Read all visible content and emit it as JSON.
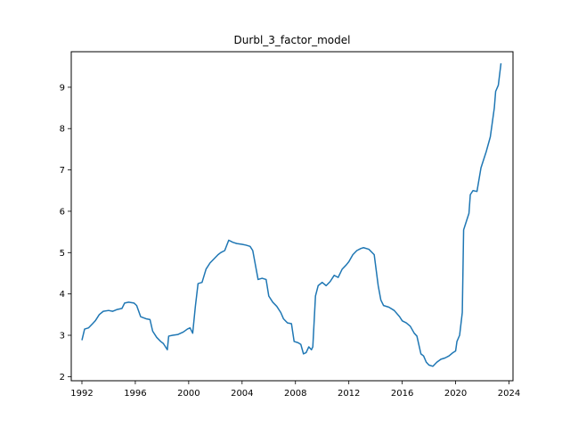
{
  "chart_data": {
    "type": "line",
    "title": "Durbl_3_factor_model",
    "xlabel": "",
    "ylabel": "",
    "xlim": [
      1991.2,
      2024.3
    ],
    "ylim": [
      1.9,
      9.86
    ],
    "xticks": [
      1992,
      1996,
      2000,
      2004,
      2008,
      2012,
      2016,
      2020,
      2024
    ],
    "yticks": [
      2,
      3,
      4,
      5,
      6,
      7,
      8,
      9
    ],
    "grid": false,
    "legend": "none",
    "line_color": "#1f77b4",
    "series": [
      {
        "x": [
          1992.0,
          1992.2,
          1992.5,
          1992.8,
          1993.0,
          1993.3,
          1993.6,
          1994.0,
          1994.3,
          1994.6,
          1995.0,
          1995.2,
          1995.5,
          1995.9,
          1996.1,
          1996.4,
          1996.8,
          1997.1,
          1997.3,
          1997.6,
          1997.9,
          1998.1,
          1998.4,
          1998.5,
          1998.8,
          1999.2,
          1999.6,
          1999.9,
          2000.1,
          2000.3,
          2000.5,
          2000.7,
          2001.0,
          2001.3,
          2001.6,
          2001.9,
          2002.2,
          2002.4,
          2002.7,
          2003.0,
          2003.3,
          2003.6,
          2004.0,
          2004.3,
          2004.6,
          2004.8,
          2005.0,
          2005.2,
          2005.5,
          2005.8,
          2006.0,
          2006.3,
          2006.6,
          2006.9,
          2007.1,
          2007.4,
          2007.7,
          2007.9,
          2008.2,
          2008.4,
          2008.6,
          2008.8,
          2009.0,
          2009.2,
          2009.3,
          2009.5,
          2009.7,
          2010.0,
          2010.3,
          2010.6,
          2010.9,
          2011.2,
          2011.5,
          2011.8,
          2012.0,
          2012.3,
          2012.6,
          2012.9,
          2013.1,
          2013.5,
          2013.9,
          2014.2,
          2014.4,
          2014.6,
          2015.0,
          2015.4,
          2015.8,
          2016.0,
          2016.3,
          2016.6,
          2016.9,
          2017.1,
          2017.4,
          2017.6,
          2017.8,
          2018.0,
          2018.3,
          2018.6,
          2018.9,
          2019.2,
          2019.5,
          2019.8,
          2020.0,
          2020.1,
          2020.3,
          2020.5,
          2020.6,
          2020.8,
          2021.0,
          2021.1,
          2021.3,
          2021.6,
          2021.9,
          2022.1,
          2022.3,
          2022.6,
          2022.9,
          2023.0,
          2023.2,
          2023.4
        ],
        "values": [
          2.88,
          3.15,
          3.18,
          3.28,
          3.35,
          3.5,
          3.58,
          3.6,
          3.58,
          3.62,
          3.65,
          3.78,
          3.8,
          3.78,
          3.72,
          3.45,
          3.4,
          3.38,
          3.1,
          2.95,
          2.85,
          2.8,
          2.65,
          2.98,
          3.0,
          3.02,
          3.08,
          3.15,
          3.18,
          3.05,
          3.7,
          4.25,
          4.28,
          4.6,
          4.75,
          4.85,
          4.95,
          5.0,
          5.05,
          5.3,
          5.25,
          5.22,
          5.2,
          5.18,
          5.15,
          5.05,
          4.7,
          4.35,
          4.38,
          4.35,
          3.95,
          3.8,
          3.7,
          3.55,
          3.4,
          3.3,
          3.28,
          2.85,
          2.82,
          2.78,
          2.55,
          2.58,
          2.72,
          2.65,
          2.72,
          3.95,
          4.2,
          4.28,
          4.2,
          4.3,
          4.45,
          4.4,
          4.6,
          4.7,
          4.78,
          4.95,
          5.05,
          5.1,
          5.12,
          5.08,
          4.95,
          4.2,
          3.85,
          3.72,
          3.68,
          3.6,
          3.45,
          3.35,
          3.3,
          3.22,
          3.05,
          2.98,
          2.55,
          2.5,
          2.35,
          2.28,
          2.25,
          2.35,
          2.42,
          2.45,
          2.5,
          2.58,
          2.62,
          2.85,
          3.0,
          3.55,
          5.55,
          5.75,
          5.95,
          6.4,
          6.5,
          6.48,
          7.05,
          7.25,
          7.45,
          7.8,
          8.5,
          8.9,
          9.05,
          9.58
        ]
      }
    ]
  }
}
